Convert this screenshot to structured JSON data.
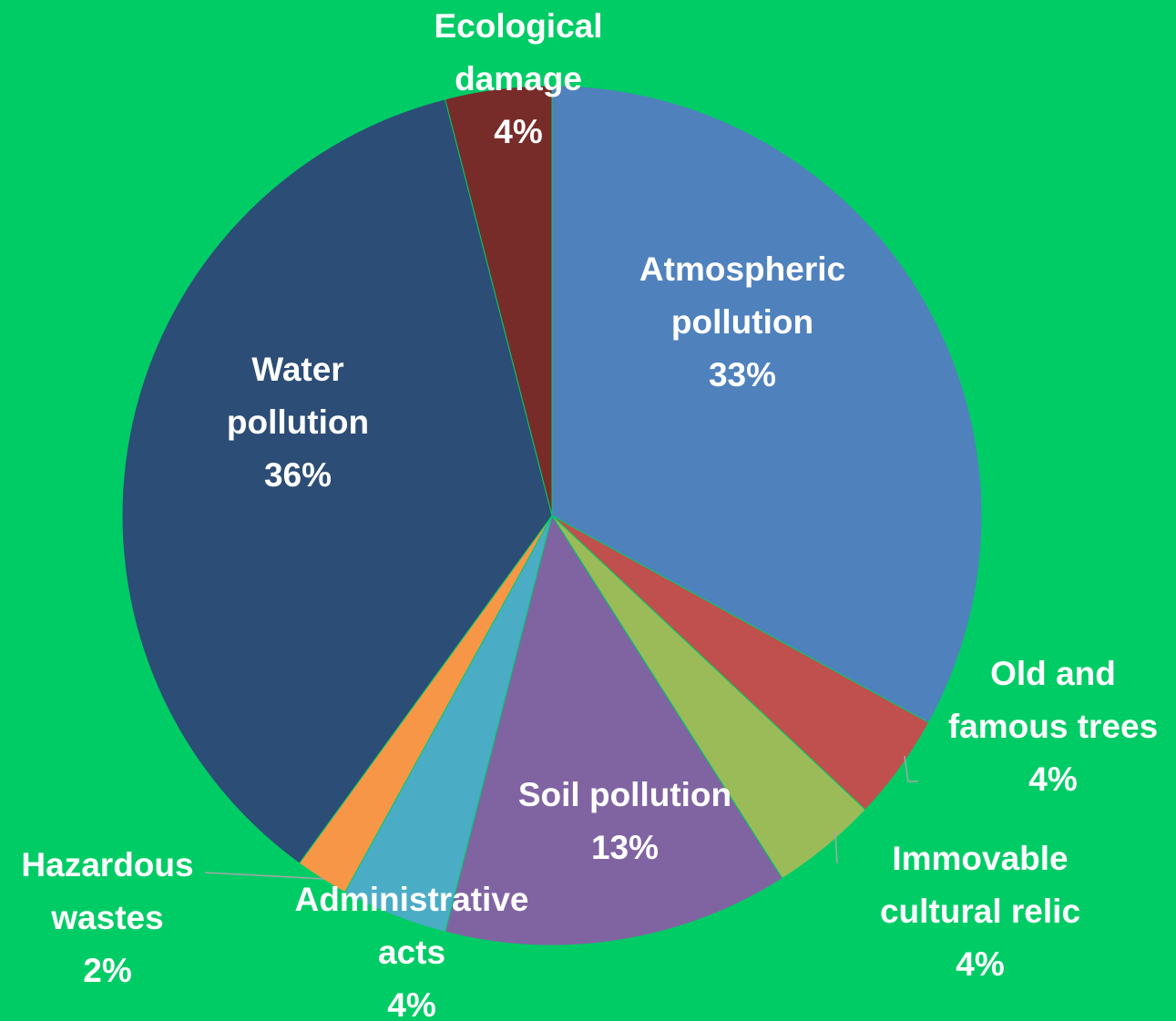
{
  "background_color": "#00cc66",
  "label_color": "#ffffff",
  "chart_data": {
    "type": "pie",
    "title": "",
    "start_angle_deg": 0,
    "direction": "clockwise",
    "slices": [
      {
        "label_lines": [
          "Atmospheric",
          "pollution"
        ],
        "percent_label": "33%",
        "value": 33,
        "color": "#4f81bd"
      },
      {
        "label_lines": [
          "Old and",
          "famous trees"
        ],
        "percent_label": "4%",
        "value": 4,
        "color": "#c0504d"
      },
      {
        "label_lines": [
          "Immovable",
          "cultural relic"
        ],
        "percent_label": "4%",
        "value": 4,
        "color": "#9bbb59"
      },
      {
        "label_lines": [
          "Soil pollution"
        ],
        "percent_label": "13%",
        "value": 13,
        "color": "#8064a2"
      },
      {
        "label_lines": [
          "Administrative",
          "acts"
        ],
        "percent_label": "4%",
        "value": 4,
        "color": "#4bacc6"
      },
      {
        "label_lines": [
          "Hazardous",
          "wastes"
        ],
        "percent_label": "2%",
        "value": 2,
        "color": "#f79646"
      },
      {
        "label_lines": [
          "Water",
          "pollution"
        ],
        "percent_label": "36%",
        "value": 36,
        "color": "#2c4d75"
      },
      {
        "label_lines": [
          "Ecological",
          "damage"
        ],
        "percent_label": "4%",
        "value": 4,
        "color": "#772c2a"
      }
    ]
  }
}
